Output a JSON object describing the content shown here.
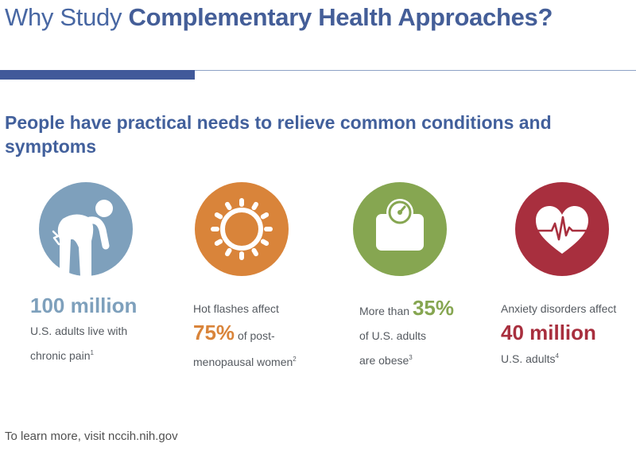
{
  "header": {
    "title_prefix": "Why Study",
    "title_bold": "Complementary Health Approaches?"
  },
  "subtitle": "People have practical needs to relieve common conditions and symptoms",
  "colors": {
    "title": "#4867a3",
    "rule": "#41599a",
    "pain": "#7ea0bc",
    "flashes": "#d9843a",
    "obesity": "#86a651",
    "anxiety": "#a82f3e"
  },
  "stats": [
    {
      "icon": "back-pain-icon",
      "big": "100 million",
      "line1": "U.S. adults live with",
      "line2": "chronic pain",
      "note": "1"
    },
    {
      "icon": "sun-icon",
      "intro": "Hot flashes affect",
      "big": "75%",
      "after": "of post-",
      "line2": "menopausal women",
      "note": "2"
    },
    {
      "icon": "scale-icon",
      "intro": "More than",
      "big": "35%",
      "line1": "of U.S. adults",
      "line2": "are obese",
      "note": "3"
    },
    {
      "icon": "heart-pulse-icon",
      "intro": "Anxiety disorders affect",
      "big": "40 million",
      "line2": "U.S. adults",
      "note": "4"
    }
  ],
  "footer": "To learn more, visit nccih.nih.gov"
}
